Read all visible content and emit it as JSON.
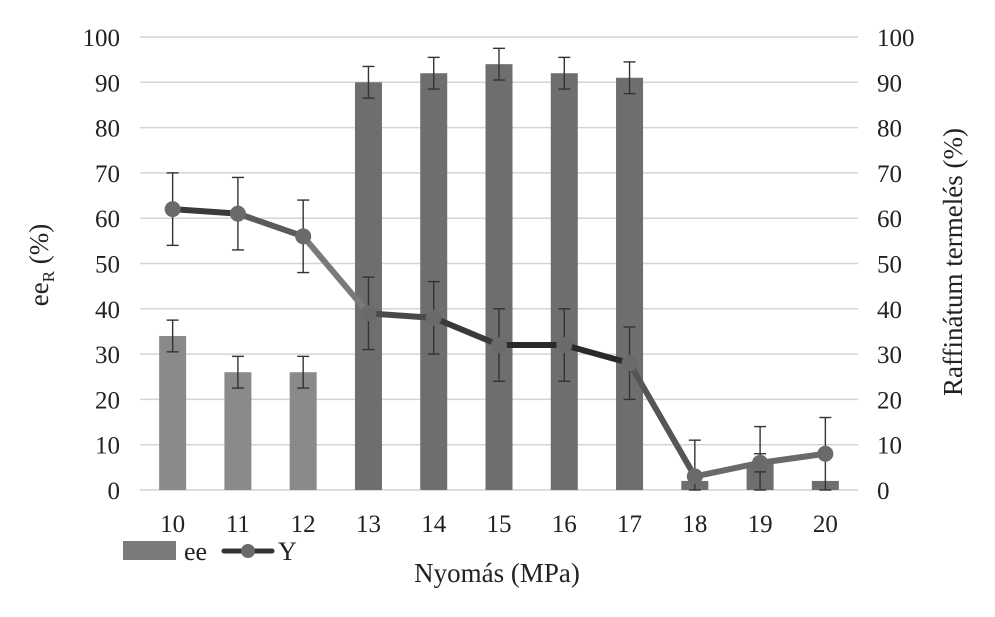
{
  "chart_data": {
    "type": "bar",
    "categories": [
      "10",
      "11",
      "12",
      "13",
      "14",
      "15",
      "16",
      "17",
      "18",
      "19",
      "20"
    ],
    "xlabel": "Nyomás (MPa)",
    "ylabel_left": {
      "main": "ee",
      "sub": "R",
      "rest": " (%)"
    },
    "ylabel_right": "Raffinátum termelés (%)",
    "ylim_left": [
      0,
      100
    ],
    "ylim_right": [
      0,
      100
    ],
    "yticks": [
      "0",
      "10",
      "20",
      "30",
      "40",
      "50",
      "60",
      "70",
      "80",
      "90",
      "100"
    ],
    "grid": true,
    "legend_position": "bottom-left",
    "series": [
      {
        "name": "ee",
        "type": "bar",
        "axis": "left",
        "values": [
          34,
          26,
          26,
          90,
          92,
          94,
          92,
          91,
          2,
          6,
          2
        ],
        "error": [
          3.5,
          3.5,
          3.5,
          3.5,
          3.5,
          3.5,
          3.5,
          3.5,
          0,
          2,
          0
        ],
        "colors": [
          "#8a8a8a",
          "#8a8a8a",
          "#8a8a8a",
          "#6e6e6e",
          "#6e6e6e",
          "#6e6e6e",
          "#6e6e6e",
          "#6e6e6e",
          "#6e6e6e",
          "#6e6e6e",
          "#6e6e6e"
        ]
      },
      {
        "name": "Y",
        "type": "line",
        "axis": "right",
        "values": [
          62,
          61,
          56,
          39,
          38,
          32,
          32,
          28,
          3,
          6,
          8
        ],
        "error": [
          8,
          8,
          8,
          8,
          8,
          8,
          8,
          8,
          8,
          8,
          8
        ],
        "segment_colors": [
          "#3a3a3a",
          "#5a5a5a",
          "#7a7a7a",
          "#4a4a4a",
          "#3a3a3a",
          "#2a2a2a",
          "#2a2a2a",
          "#555555",
          "#6a6a6a",
          "#6a6a6a"
        ],
        "marker_color": "#6a6a6a"
      }
    ]
  }
}
